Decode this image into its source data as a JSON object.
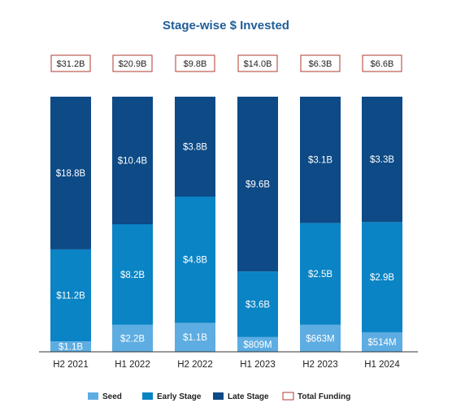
{
  "chart_data": {
    "type": "bar",
    "stacked": true,
    "title": "Stage-wise $ Invested",
    "xlabel": "",
    "ylabel": "",
    "categories": [
      "H2 2021",
      "H1 2022",
      "H2 2022",
      "H1 2023",
      "H2 2023",
      "H1 2024"
    ],
    "series": [
      {
        "name": "Seed",
        "values": [
          1.1,
          2.2,
          1.1,
          0.809,
          0.663,
          0.514
        ],
        "labels": [
          "$1.1B",
          "$2.2B",
          "$1.1B",
          "$809M",
          "$663M",
          "$514M"
        ],
        "color": "#5dade2"
      },
      {
        "name": "Early Stage",
        "values": [
          11.2,
          8.2,
          4.8,
          3.6,
          2.5,
          2.9
        ],
        "labels": [
          "$11.2B",
          "$8.2B",
          "$4.8B",
          "$3.6B",
          "$2.5B",
          "$2.9B"
        ],
        "color": "#0a84c4"
      },
      {
        "name": "Late Stage",
        "values": [
          18.8,
          10.4,
          3.8,
          9.6,
          3.1,
          3.3
        ],
        "labels": [
          "$18.8B",
          "$10.4B",
          "$3.8B",
          "$9.6B",
          "$3.1B",
          "$3.3B"
        ],
        "color": "#0d4a86"
      }
    ],
    "totals": {
      "name": "Total Funding",
      "values": [
        31.2,
        20.9,
        9.8,
        14.0,
        6.3,
        6.6
      ],
      "labels": [
        "$31.2B",
        "$20.9B",
        "$9.8B",
        "$14.0B",
        "$6.3B",
        "$6.6B"
      ],
      "border_color": "#b03a2e"
    },
    "normalized_to_100_percent": true,
    "legend_position": "bottom",
    "grid": false,
    "title_color": "#1f5d99"
  }
}
